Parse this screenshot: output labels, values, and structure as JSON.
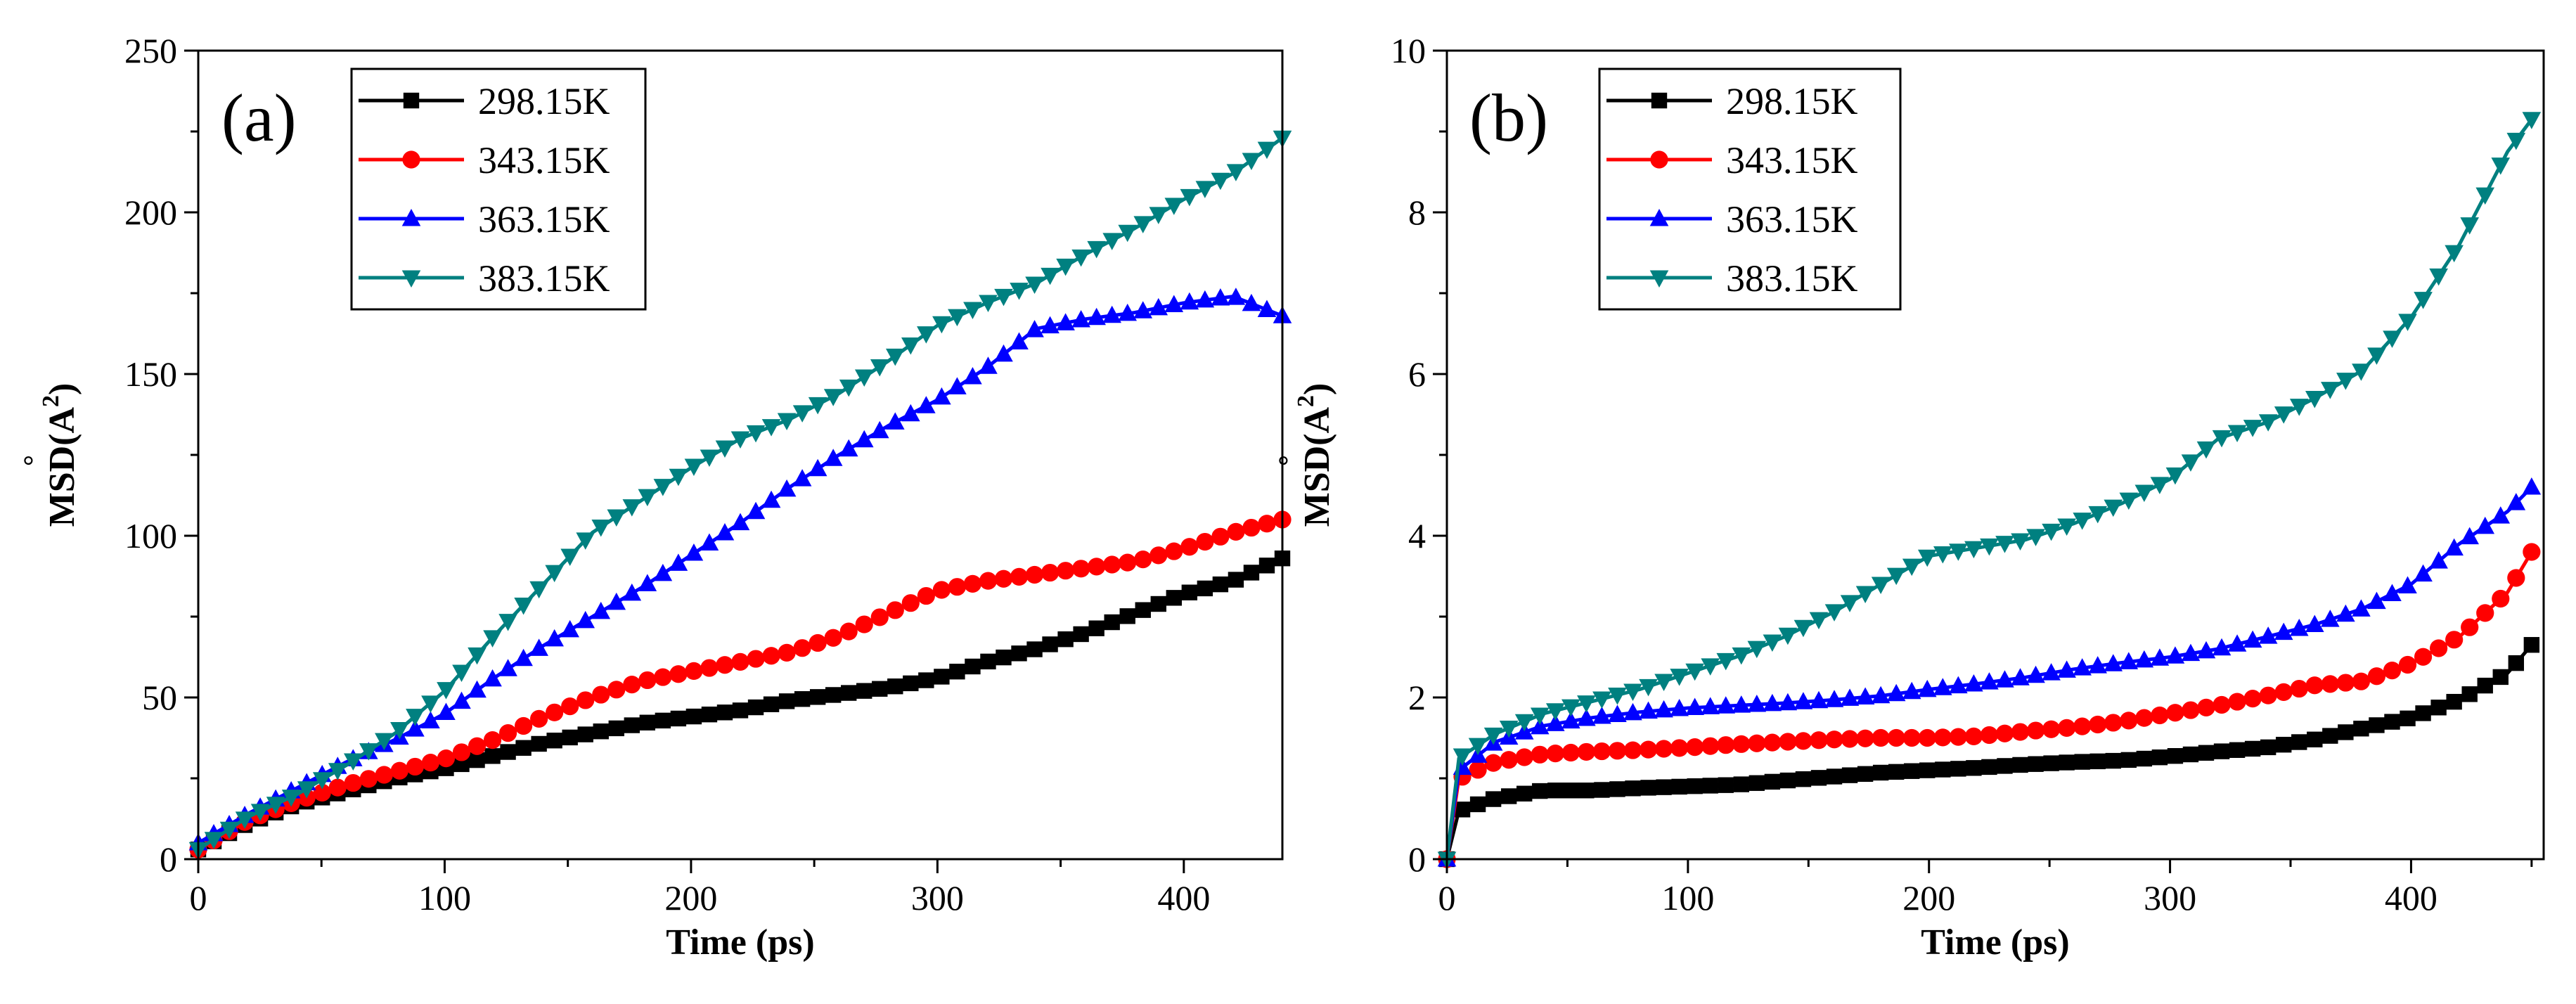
{
  "chart_data": [
    {
      "type": "line",
      "panel_label": "(a)",
      "xlabel": "Time (ps)",
      "ylabel_main": "MSD(",
      "ylabel_unit": "A",
      "ylabel_ring": "°",
      "ylabel_exp": "2",
      "ylabel_close": ")",
      "xlim": [
        0,
        440
      ],
      "ylim": [
        0,
        250
      ],
      "xticks": [
        0,
        100,
        200,
        300,
        400
      ],
      "yticks": [
        0,
        50,
        100,
        150,
        200,
        250
      ],
      "legend_position": "top-left",
      "series": [
        {
          "name": "298.15K",
          "color": "#000000",
          "marker": "square",
          "x": [
            0,
            20,
            40,
            60,
            80,
            100,
            120,
            140,
            160,
            180,
            200,
            220,
            240,
            260,
            280,
            300,
            320,
            340,
            360,
            380,
            400,
            420,
            440
          ],
          "y": [
            3,
            11,
            17,
            21,
            25,
            28,
            32,
            36,
            39,
            42,
            44,
            46,
            49,
            51,
            53,
            56,
            61,
            65,
            70,
            76,
            82,
            86,
            93
          ]
        },
        {
          "name": "343.15K",
          "color": "#ff0000",
          "marker": "circle",
          "x": [
            0,
            20,
            40,
            60,
            80,
            100,
            120,
            140,
            160,
            180,
            200,
            220,
            240,
            260,
            280,
            300,
            320,
            340,
            360,
            380,
            400,
            420,
            440
          ],
          "y": [
            3,
            12,
            18,
            23,
            27,
            31,
            37,
            44,
            50,
            55,
            58,
            61,
            64,
            69,
            76,
            83,
            86,
            88,
            90,
            92,
            96,
            101,
            105
          ]
        },
        {
          "name": "363.15K",
          "color": "#0000ff",
          "marker": "triangle-up",
          "x": [
            0,
            20,
            40,
            60,
            80,
            100,
            120,
            140,
            160,
            180,
            200,
            220,
            240,
            260,
            280,
            300,
            320,
            340,
            360,
            380,
            400,
            420,
            440
          ],
          "y": [
            5,
            14,
            22,
            30,
            37,
            45,
            56,
            66,
            75,
            84,
            94,
            104,
            115,
            125,
            134,
            142,
            152,
            164,
            167,
            169,
            172,
            174,
            168
          ]
        },
        {
          "name": "383.15K",
          "color": "#008080",
          "marker": "triangle-down",
          "x": [
            0,
            20,
            40,
            60,
            80,
            100,
            120,
            140,
            160,
            180,
            200,
            220,
            240,
            260,
            280,
            300,
            320,
            340,
            360,
            380,
            400,
            420,
            440
          ],
          "y": [
            3,
            13,
            20,
            29,
            39,
            52,
            69,
            85,
            101,
            111,
            121,
            130,
            136,
            144,
            154,
            165,
            172,
            178,
            187,
            195,
            204,
            212,
            223
          ]
        }
      ]
    },
    {
      "type": "line",
      "panel_label": "(b)",
      "xlabel": "Time (ps)",
      "ylabel_main": "MSD(",
      "ylabel_unit": "A",
      "ylabel_ring": "°",
      "ylabel_exp": "2",
      "ylabel_close": ")",
      "xlim": [
        0,
        455
      ],
      "ylim": [
        0,
        10
      ],
      "xticks": [
        0,
        100,
        200,
        300,
        400
      ],
      "yticks": [
        0,
        2,
        4,
        6,
        8,
        10
      ],
      "legend_position": "top-left",
      "series": [
        {
          "name": "298.15K",
          "color": "#000000",
          "marker": "square",
          "x": [
            0,
            5,
            20,
            40,
            60,
            80,
            100,
            120,
            140,
            160,
            180,
            200,
            220,
            240,
            260,
            280,
            300,
            320,
            340,
            360,
            380,
            400,
            420,
            440,
            450
          ],
          "y": [
            0,
            0.6,
            0.75,
            0.85,
            0.85,
            0.88,
            0.9,
            0.92,
            0.97,
            1.02,
            1.07,
            1.1,
            1.13,
            1.17,
            1.2,
            1.22,
            1.27,
            1.33,
            1.38,
            1.48,
            1.62,
            1.75,
            1.97,
            2.3,
            2.65
          ]
        },
        {
          "name": "343.15K",
          "color": "#ff0000",
          "marker": "circle",
          "x": [
            0,
            5,
            20,
            40,
            60,
            80,
            100,
            120,
            140,
            160,
            180,
            200,
            220,
            240,
            260,
            280,
            300,
            320,
            340,
            360,
            380,
            400,
            420,
            440,
            450
          ],
          "y": [
            0,
            1.0,
            1.2,
            1.3,
            1.33,
            1.35,
            1.38,
            1.42,
            1.45,
            1.48,
            1.5,
            1.5,
            1.52,
            1.58,
            1.63,
            1.7,
            1.8,
            1.9,
            2.02,
            2.15,
            2.2,
            2.42,
            2.75,
            3.3,
            3.8
          ]
        },
        {
          "name": "363.15K",
          "color": "#0000ff",
          "marker": "triangle-up",
          "x": [
            0,
            5,
            20,
            40,
            60,
            80,
            100,
            120,
            140,
            160,
            180,
            200,
            220,
            240,
            260,
            280,
            300,
            320,
            340,
            360,
            380,
            400,
            420,
            440,
            450
          ],
          "y": [
            0,
            1.1,
            1.45,
            1.65,
            1.75,
            1.82,
            1.87,
            1.9,
            1.93,
            1.97,
            2.02,
            2.1,
            2.17,
            2.25,
            2.35,
            2.43,
            2.5,
            2.6,
            2.75,
            2.9,
            3.1,
            3.4,
            3.9,
            4.3,
            4.6
          ]
        },
        {
          "name": "383.15K",
          "color": "#008080",
          "marker": "triangle-down",
          "x": [
            0,
            5,
            20,
            40,
            60,
            80,
            100,
            120,
            140,
            160,
            180,
            200,
            220,
            240,
            260,
            280,
            300,
            320,
            340,
            360,
            380,
            400,
            420,
            440,
            450
          ],
          "y": [
            0,
            1.25,
            1.55,
            1.8,
            1.95,
            2.1,
            2.3,
            2.5,
            2.75,
            3.05,
            3.4,
            3.75,
            3.85,
            3.95,
            4.15,
            4.4,
            4.7,
            5.2,
            5.4,
            5.7,
            6.05,
            6.7,
            7.6,
            8.75,
            9.15
          ]
        }
      ]
    }
  ]
}
